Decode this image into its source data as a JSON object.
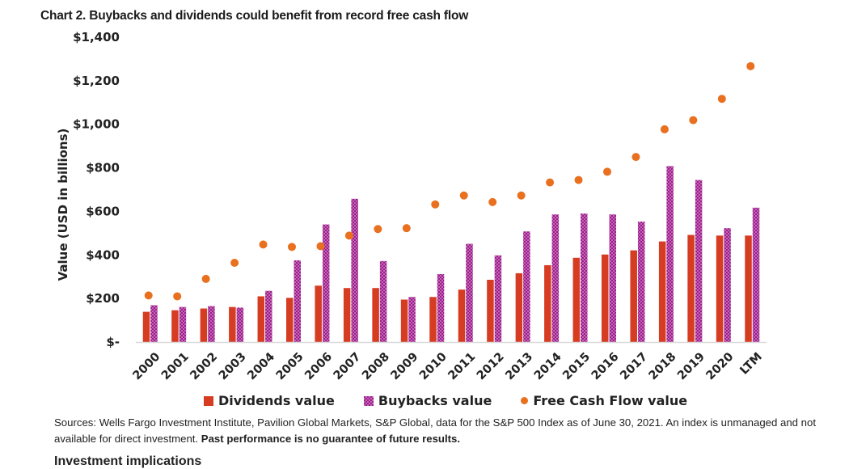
{
  "chart_data": {
    "type": "bar",
    "title": "Chart 2. Buybacks and dividends could benefit from record free cash flow",
    "xlabel": "",
    "ylabel": "Value (USD in billions)",
    "ylim": [
      0,
      1400
    ],
    "yticks": [
      0,
      200,
      400,
      600,
      800,
      1000,
      1200,
      1400
    ],
    "ytick_labels": [
      "$-",
      "$200",
      "$400",
      "$600",
      "$800",
      "$1,000",
      "$1,200",
      "$1,400"
    ],
    "grid": false,
    "legend_position": "bottom",
    "categories": [
      "2000",
      "2001",
      "2002",
      "2003",
      "2004",
      "2005",
      "2006",
      "2007",
      "2008",
      "2009",
      "2010",
      "2011",
      "2012",
      "2013",
      "2014",
      "2015",
      "2016",
      "2017",
      "2018",
      "2019",
      "2020",
      "LTM"
    ],
    "series": [
      {
        "name": "Dividends value",
        "type": "bar",
        "color": "#d63c22",
        "values": [
          139,
          146,
          154,
          161,
          210,
          203,
          259,
          248,
          248,
          195,
          207,
          241,
          286,
          316,
          353,
          387,
          402,
          421,
          462,
          492,
          489,
          489
        ]
      },
      {
        "name": "Buybacks value",
        "type": "bar",
        "color": "#9b1f8a",
        "values": [
          169,
          161,
          165,
          158,
          235,
          375,
          540,
          658,
          372,
          207,
          312,
          451,
          398,
          508,
          586,
          590,
          586,
          553,
          808,
          744,
          523,
          617
        ]
      },
      {
        "name": "Free Cash Flow value",
        "type": "scatter",
        "color": "#e8701f",
        "values": [
          214,
          210,
          290,
          364,
          448,
          437,
          440,
          489,
          519,
          523,
          632,
          673,
          643,
          673,
          733,
          744,
          782,
          850,
          977,
          1019,
          1117,
          1267
        ]
      }
    ]
  },
  "legend": {
    "dividends": "Dividends value",
    "buybacks": "Buybacks value",
    "fcf": "Free Cash Flow value"
  },
  "footer": {
    "sources": "Sources: Wells Fargo Investment Institute, Pavilion Global Markets, S&P Global, data for the S&P 500 Index as of June 30, 2021. An index is unmanaged and not available for direct investment.",
    "disclaimer": "Past performance is no guarantee of future results.",
    "next_heading": "Investment implications"
  }
}
